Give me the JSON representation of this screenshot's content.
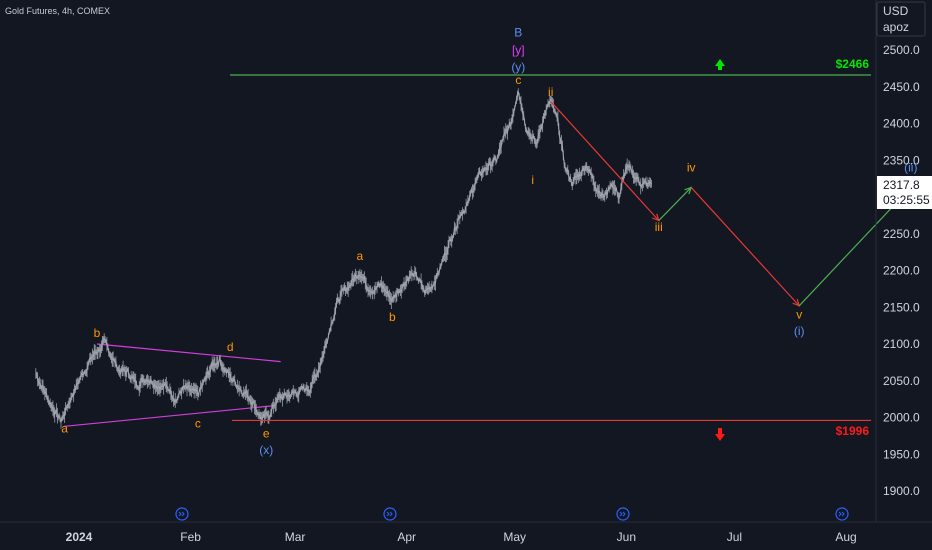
{
  "header": {
    "title": "Gold Futures, 4h, COMEX"
  },
  "price_scale": {
    "currency": "USD",
    "scale_mode": "apoz"
  },
  "current_price": {
    "value": "2317.8",
    "countdown": "03:25:55"
  },
  "colors": {
    "background": "#131722",
    "candles": "#8a8e98",
    "resistance": "#4caf50",
    "support": "#e53935",
    "triangle": "#d040d8",
    "orange": "#ff9800",
    "blue": "#5b8ff0",
    "magenta": "#e040fb",
    "up_arrow": "#00e600",
    "down_arrow": "#ff1a1a"
  },
  "chart_data": {
    "type": "line",
    "title": "Gold Futures, 4h, COMEX",
    "x_ticks": [
      "2024",
      "Feb",
      "Mar",
      "Apr",
      "May",
      "Jun",
      "Jul",
      "Aug"
    ],
    "y_ticks": [
      1900,
      1950,
      2000,
      2050,
      2100,
      2150,
      2200,
      2250,
      2300,
      2350,
      2400,
      2450,
      2500
    ],
    "ylim": [
      1865,
      2535
    ],
    "grid": false,
    "series": [
      {
        "values": [
          [
            "2023-12-20",
            2060
          ],
          [
            "2023-12-24",
            2020
          ],
          [
            "2023-12-27",
            1995
          ],
          [
            "2023-12-30",
            2030
          ],
          [
            "2024-01-02",
            2060
          ],
          [
            "2024-01-05",
            2085
          ],
          [
            "2024-01-08",
            2100
          ],
          [
            "2024-01-10",
            2085
          ],
          [
            "2024-01-12",
            2065
          ],
          [
            "2024-01-15",
            2060
          ],
          [
            "2024-01-17",
            2045
          ],
          [
            "2024-01-20",
            2055
          ],
          [
            "2024-01-23",
            2045
          ],
          [
            "2024-01-26",
            2040
          ],
          [
            "2024-01-28",
            2025
          ],
          [
            "2024-01-30",
            2040
          ],
          [
            "2024-02-01",
            2035
          ],
          [
            "2024-02-03",
            2030
          ],
          [
            "2024-02-05",
            2050
          ],
          [
            "2024-02-07",
            2070
          ],
          [
            "2024-02-09",
            2080
          ],
          [
            "2024-02-10",
            2070
          ],
          [
            "2024-02-12",
            2055
          ],
          [
            "2024-02-15",
            2040
          ],
          [
            "2024-02-18",
            2025
          ],
          [
            "2024-02-20",
            2005
          ],
          [
            "2024-02-21",
            1997
          ],
          [
            "2024-02-23",
            2005
          ],
          [
            "2024-02-25",
            2025
          ],
          [
            "2024-02-28",
            2030
          ],
          [
            "2024-03-02",
            2035
          ],
          [
            "2024-03-05",
            2040
          ],
          [
            "2024-03-07",
            2060
          ],
          [
            "2024-03-09",
            2090
          ],
          [
            "2024-03-11",
            2130
          ],
          [
            "2024-03-13",
            2160
          ],
          [
            "2024-03-16",
            2180
          ],
          [
            "2024-03-19",
            2200
          ],
          [
            "2024-03-21",
            2180
          ],
          [
            "2024-03-23",
            2175
          ],
          [
            "2024-03-25",
            2180
          ],
          [
            "2024-03-28",
            2160
          ],
          [
            "2024-03-30",
            2175
          ],
          [
            "2024-04-02",
            2195
          ],
          [
            "2024-04-04",
            2190
          ],
          [
            "2024-04-06",
            2170
          ],
          [
            "2024-04-08",
            2180
          ],
          [
            "2024-04-10",
            2200
          ],
          [
            "2024-04-13",
            2240
          ],
          [
            "2024-04-16",
            2280
          ],
          [
            "2024-04-18",
            2290
          ],
          [
            "2024-04-20",
            2320
          ],
          [
            "2024-04-23",
            2340
          ],
          [
            "2024-04-26",
            2350
          ],
          [
            "2024-04-28",
            2380
          ],
          [
            "2024-04-30",
            2400
          ],
          [
            "2024-05-02",
            2450
          ],
          [
            "2024-05-04",
            2400
          ],
          [
            "2024-05-07",
            2370
          ],
          [
            "2024-05-09",
            2410
          ],
          [
            "2024-05-11",
            2430
          ],
          [
            "2024-05-13",
            2400
          ],
          [
            "2024-05-15",
            2340
          ],
          [
            "2024-05-17",
            2320
          ],
          [
            "2024-05-19",
            2330
          ],
          [
            "2024-05-21",
            2345
          ],
          [
            "2024-05-23",
            2320
          ],
          [
            "2024-05-26",
            2300
          ],
          [
            "2024-05-28",
            2320
          ],
          [
            "2024-05-30",
            2300
          ],
          [
            "2024-06-01",
            2340
          ],
          [
            "2024-06-03",
            2330
          ],
          [
            "2024-06-05",
            2320
          ],
          [
            "2024-06-07",
            2316
          ],
          [
            "2024-06-08",
            2318
          ]
        ]
      }
    ],
    "levels": [
      {
        "label": "$2466",
        "price": 2466
      },
      {
        "label": "$1996",
        "price": 1996
      }
    ],
    "wave_labels": [
      {
        "text": "B",
        "date": "2024-05-02",
        "price": 2524,
        "color": "blue"
      },
      {
        "text": "[y]",
        "date": "2024-05-02",
        "price": 2500,
        "color": "magenta"
      },
      {
        "text": "(y)",
        "date": "2024-05-02",
        "price": 2477,
        "color": "blue"
      },
      {
        "text": "c",
        "date": "2024-05-02",
        "price": 2459,
        "color": "orange"
      },
      {
        "text": "ii",
        "date": "2024-05-11",
        "price": 2443,
        "color": "orange"
      },
      {
        "text": "i",
        "date": "2024-05-06",
        "price": 2323,
        "color": "orange"
      },
      {
        "text": "iii",
        "date": "2024-06-10",
        "price": 2259,
        "color": "orange"
      },
      {
        "text": "iv",
        "date": "2024-06-19",
        "price": 2340,
        "color": "orange"
      },
      {
        "text": "v",
        "date": "2024-07-19",
        "price": 2140,
        "color": "orange"
      },
      {
        "text": "(i)",
        "date": "2024-07-19",
        "price": 2118,
        "color": "blue"
      },
      {
        "text": "(ii)",
        "date": "2024-08-19",
        "price": 2340,
        "color": "blue"
      },
      {
        "text": "a",
        "date": "2023-12-28",
        "price": 1985,
        "color": "orange"
      },
      {
        "text": "b",
        "date": "2024-01-06",
        "price": 2115,
        "color": "orange"
      },
      {
        "text": "c",
        "date": "2024-02-03",
        "price": 1992,
        "color": "orange"
      },
      {
        "text": "d",
        "date": "2024-02-12",
        "price": 2096,
        "color": "orange"
      },
      {
        "text": "e",
        "date": "2024-02-22",
        "price": 1978,
        "color": "orange"
      },
      {
        "text": "(x)",
        "date": "2024-02-22",
        "price": 1956,
        "color": "blue"
      },
      {
        "text": "a",
        "date": "2024-03-19",
        "price": 2220,
        "color": "orange"
      },
      {
        "text": "b",
        "date": "2024-03-28",
        "price": 2137,
        "color": "orange"
      }
    ],
    "projection": [
      {
        "from": [
          "2024-05-11",
          2430
        ],
        "to": [
          "2024-06-10",
          2268
        ],
        "direction": "down"
      },
      {
        "from": [
          "2024-06-10",
          2268
        ],
        "to": [
          "2024-06-19",
          2313
        ],
        "direction": "up"
      },
      {
        "from": [
          "2024-06-19",
          2313
        ],
        "to": [
          "2024-07-19",
          2152
        ],
        "direction": "down"
      },
      {
        "from": [
          "2024-07-19",
          2152
        ],
        "to": [
          "2024-08-19",
          2313
        ],
        "direction": "up"
      }
    ],
    "triangle": [
      {
        "from": [
          "2023-12-28",
          1988
        ],
        "to": [
          "2024-02-24",
          2016
        ]
      },
      {
        "from": [
          "2024-01-06",
          2100
        ],
        "to": [
          "2024-02-26",
          2076
        ]
      }
    ]
  }
}
